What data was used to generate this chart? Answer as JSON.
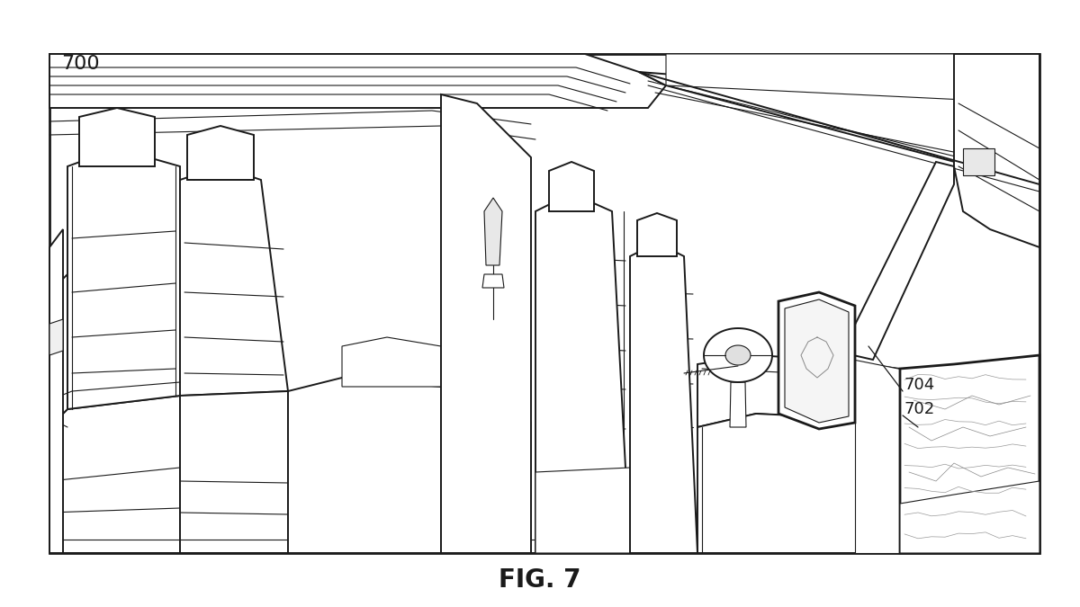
{
  "title": "FIG. 7",
  "fig_label": "700",
  "label_702": "702",
  "label_704": "704",
  "bg_color": "#ffffff",
  "line_color": "#1a1a1a",
  "title_fontsize": 20,
  "label_fontsize": 13
}
